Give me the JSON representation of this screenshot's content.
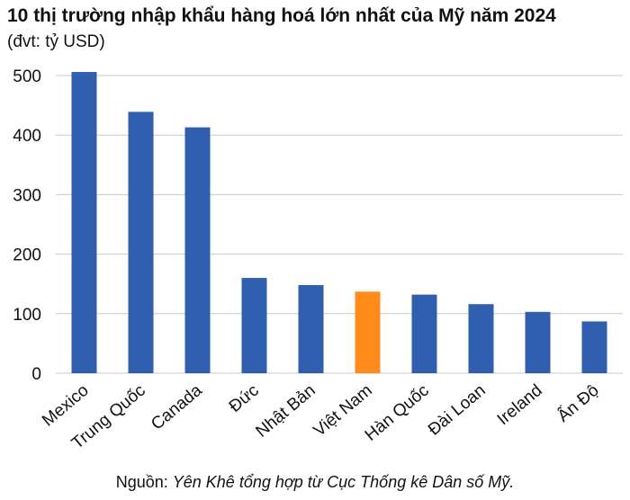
{
  "chart_data": {
    "type": "bar",
    "title": "10 thị trường nhập khẩu hàng hoá lớn nhất của Mỹ năm 2024",
    "subtitle": "(đvt: tỷ USD)",
    "categories": [
      "Mexico",
      "Trung Quốc",
      "Canada",
      "Đức",
      "Nhật Bản",
      "Việt Nam",
      "Hàn Quốc",
      "Đài Loan",
      "Ireland",
      "Ấn Độ"
    ],
    "values": [
      506,
      439,
      413,
      160,
      148,
      137,
      132,
      116,
      103,
      87
    ],
    "ylim": [
      0,
      500
    ],
    "yticks": [
      "0",
      "100",
      "200",
      "300",
      "400",
      "500"
    ],
    "grid": true,
    "colors": {
      "default": "#2f5fae",
      "highlight": "#ff8c1a",
      "highlight_category": "Việt Nam",
      "grid": "#c8c8c8"
    }
  },
  "source": {
    "prefix": "Nguồn: ",
    "detail": "Yên Khê tổng hợp từ Cục Thống kê Dân số Mỹ."
  }
}
